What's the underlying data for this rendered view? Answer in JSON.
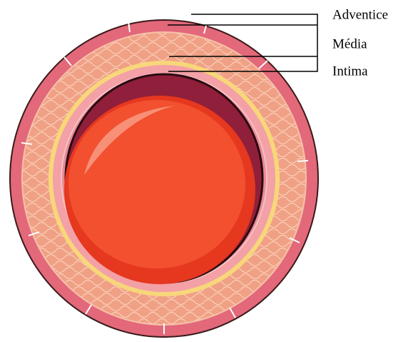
{
  "labels": [
    "Adventice",
    "Média",
    "Intima"
  ]
}
